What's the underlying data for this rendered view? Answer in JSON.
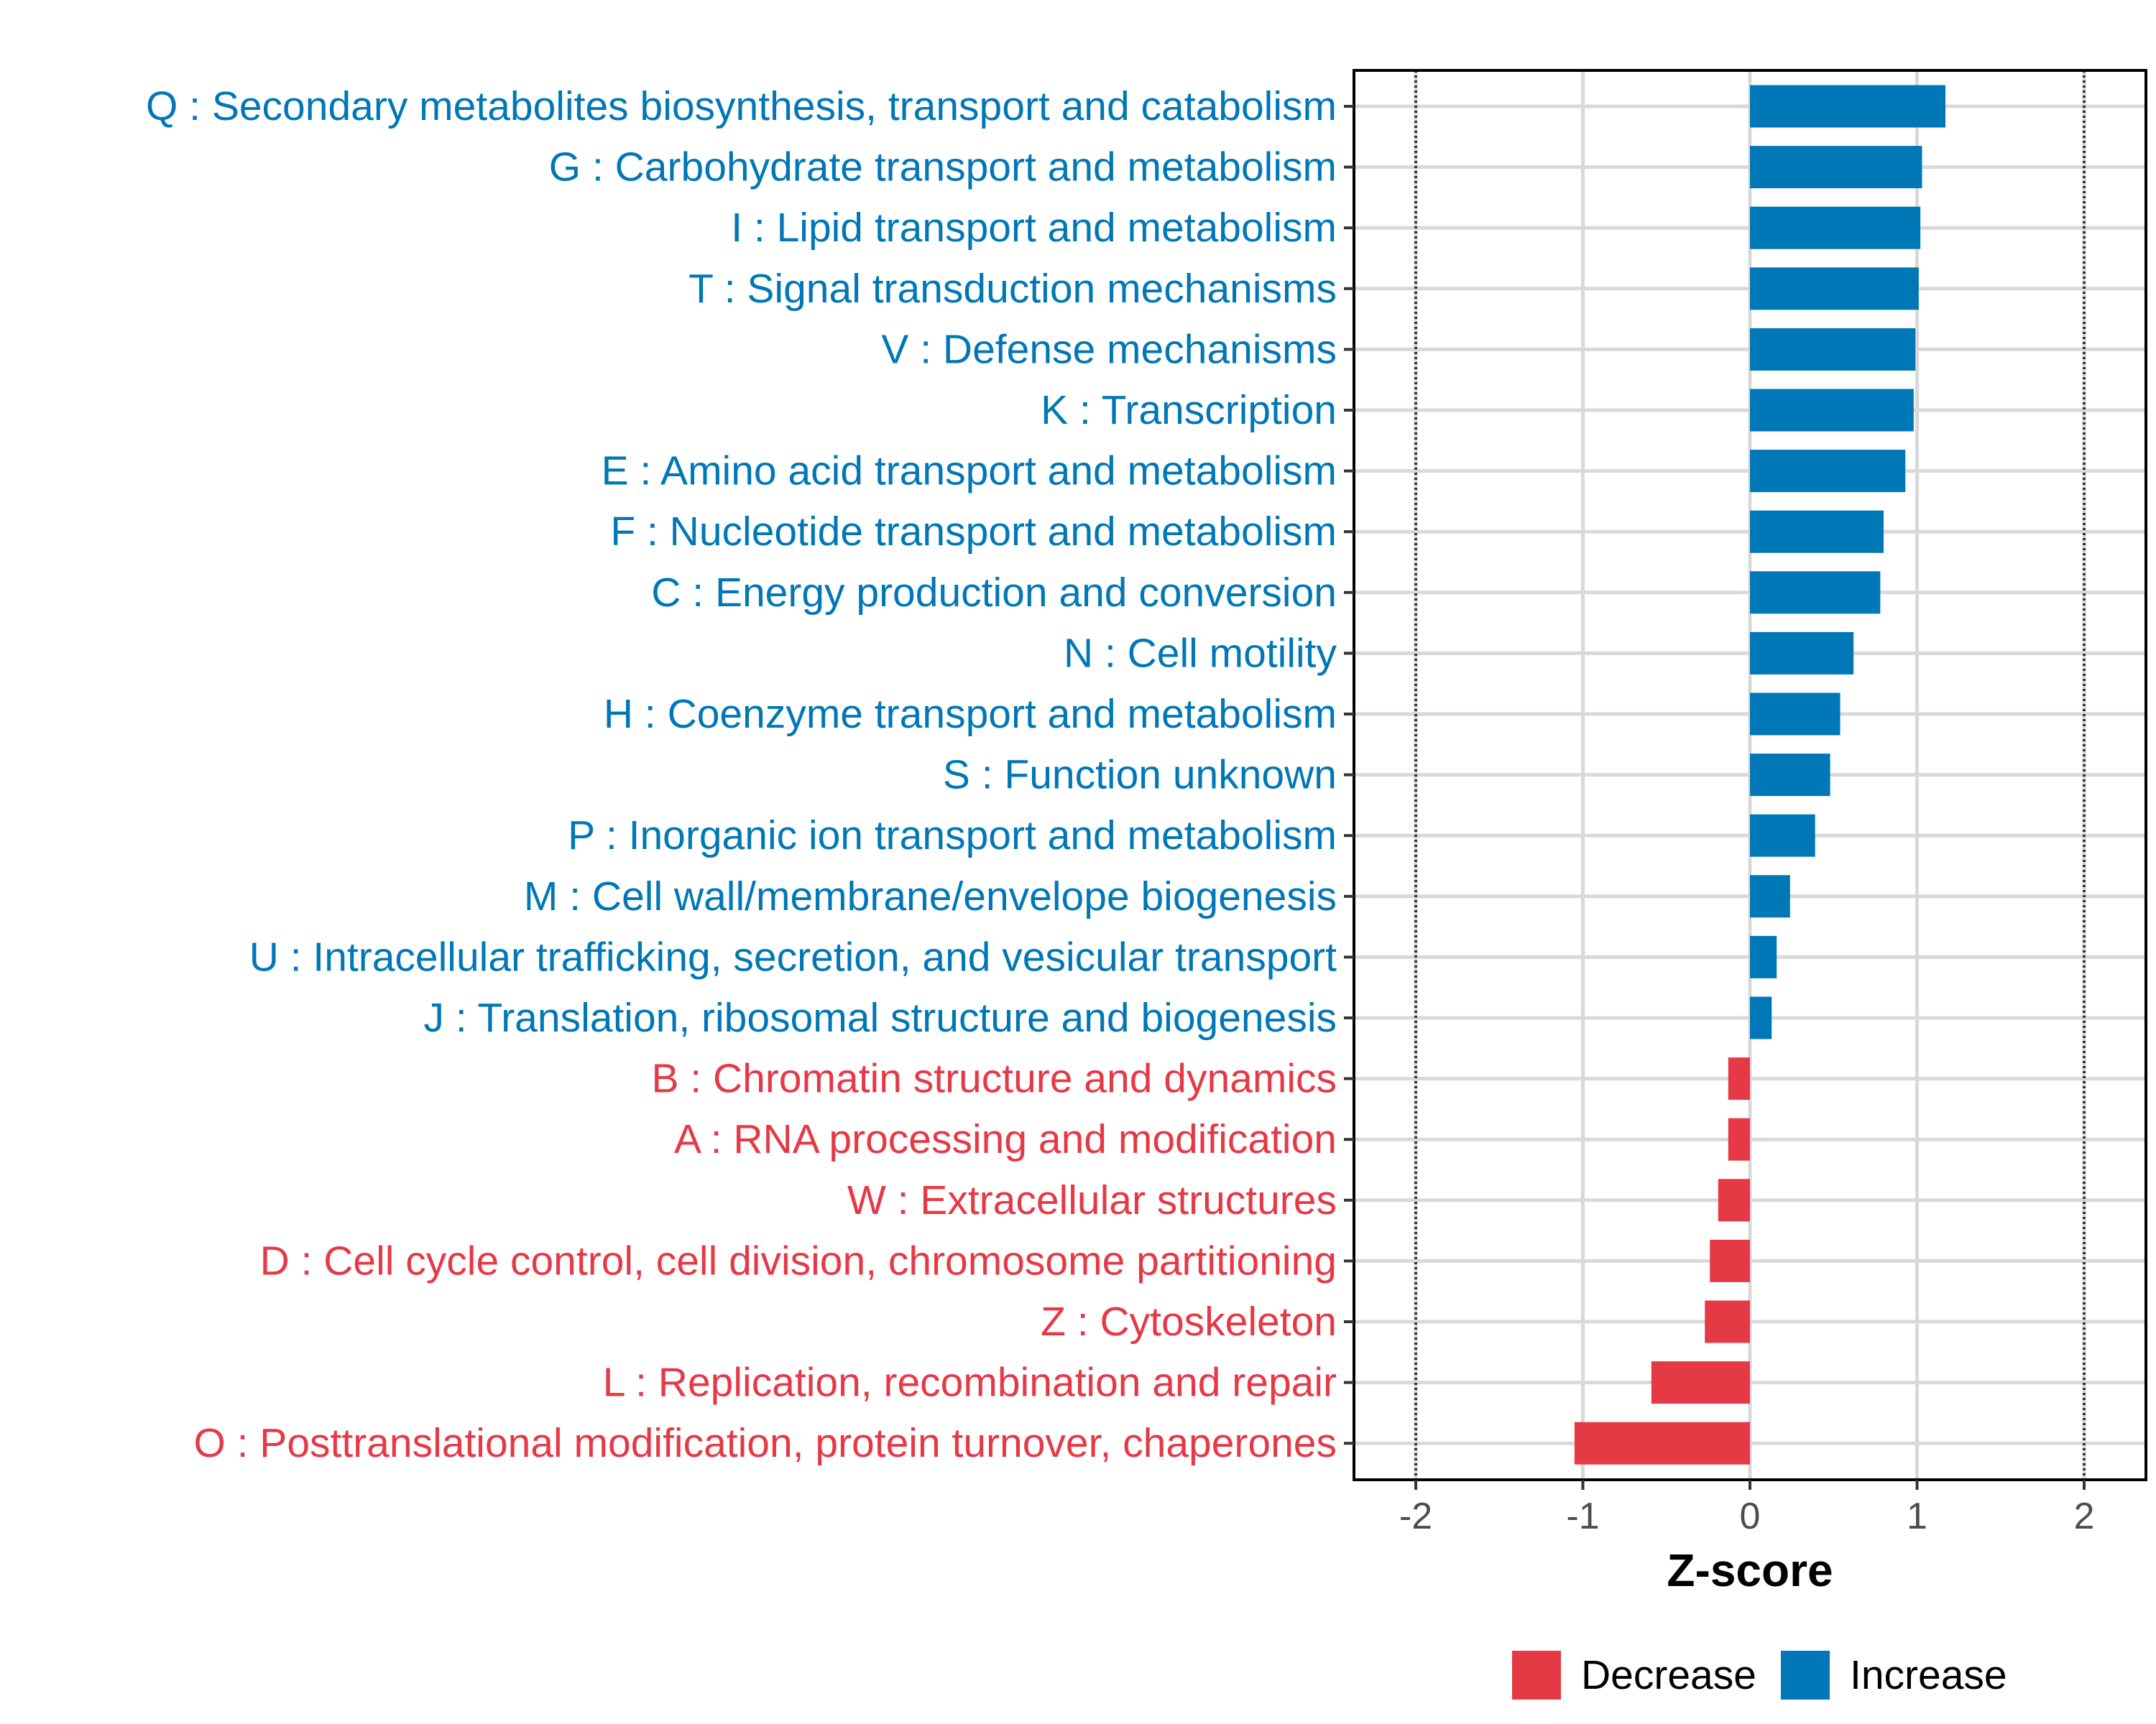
{
  "chart_data": {
    "type": "bar",
    "orientation": "horizontal",
    "categories": [
      "Q : Secondary metabolites biosynthesis, transport and catabolism",
      "G : Carbohydrate transport and metabolism",
      "I : Lipid transport and metabolism",
      "T : Signal transduction mechanisms",
      "V : Defense mechanisms",
      "K : Transcription",
      "E : Amino acid transport and metabolism",
      "F : Nucleotide transport and metabolism",
      "C : Energy production and conversion",
      "N : Cell motility",
      "H : Coenzyme transport and metabolism",
      "S : Function unknown",
      "P : Inorganic ion transport and metabolism",
      "M : Cell wall/membrane/envelope biogenesis",
      "U : Intracellular trafficking, secretion, and vesicular transport",
      "J : Translation, ribosomal structure and biogenesis",
      "B : Chromatin structure and dynamics",
      "A : RNA processing and modification",
      "W : Extracellular structures",
      "D : Cell cycle control, cell division, chromosome partitioning",
      "Z : Cytoskeleton",
      "L : Replication, recombination and repair",
      "O : Posttranslational modification, protein turnover, chaperones"
    ],
    "values": [
      1.17,
      1.03,
      1.02,
      1.01,
      0.99,
      0.98,
      0.93,
      0.8,
      0.78,
      0.62,
      0.54,
      0.48,
      0.39,
      0.24,
      0.16,
      0.13,
      -0.13,
      -0.13,
      -0.19,
      -0.24,
      -0.27,
      -0.59,
      -1.05
    ],
    "groups": [
      "Increase",
      "Increase",
      "Increase",
      "Increase",
      "Increase",
      "Increase",
      "Increase",
      "Increase",
      "Increase",
      "Increase",
      "Increase",
      "Increase",
      "Increase",
      "Increase",
      "Increase",
      "Increase",
      "Decrease",
      "Decrease",
      "Decrease",
      "Decrease",
      "Decrease",
      "Decrease",
      "Decrease"
    ],
    "xlabel": "Z-score",
    "ylabel": "",
    "xlim": [
      -2.37,
      2.37
    ],
    "xticks": [
      -2,
      -1,
      0,
      1,
      2
    ],
    "xtick_labels": [
      "-2",
      "-1",
      "0",
      "1",
      "2"
    ],
    "reference_lines": [
      -2,
      2
    ],
    "grid": true,
    "legend": {
      "position": "bottom",
      "entries": [
        {
          "label": "Decrease",
          "color": "#E63946"
        },
        {
          "label": "Increase",
          "color": "#0077B6"
        }
      ]
    },
    "colors": {
      "Decrease": "#E63946",
      "Increase": "#0077B6"
    }
  }
}
